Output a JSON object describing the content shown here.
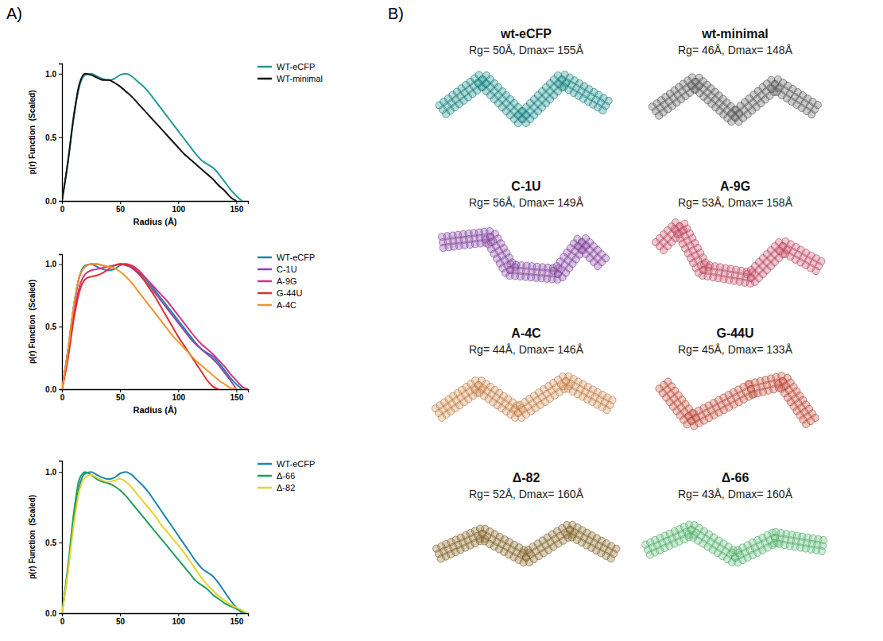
{
  "panel_labels": {
    "A": "A)",
    "B": "B)"
  },
  "chart_data": [
    {
      "type": "line",
      "xlabel": "Radius (Å)",
      "ylabel": "p(r) Function  (Scaled)",
      "x": [
        0,
        5,
        10,
        15,
        20,
        25,
        30,
        35,
        40,
        45,
        50,
        55,
        60,
        65,
        70,
        75,
        80,
        85,
        90,
        95,
        100,
        105,
        110,
        115,
        120,
        125,
        130,
        135,
        140,
        145,
        150,
        155,
        160
      ],
      "xlim": [
        0,
        160
      ],
      "xticks": [
        0,
        50,
        100,
        150
      ],
      "ylim": [
        0,
        1.08
      ],
      "yticks": [
        {
          "value": 0,
          "label": "0.0"
        },
        {
          "value": 0.5,
          "label": "0.5"
        },
        {
          "value": 1,
          "label": "1.0"
        }
      ],
      "legend": "right",
      "series": [
        {
          "name": "WT-eCFP",
          "color": "#1f9a9a",
          "values": [
            0,
            0.3,
            0.65,
            0.9,
            0.99,
            1.0,
            0.98,
            0.96,
            0.95,
            0.96,
            0.99,
            1.0,
            0.98,
            0.94,
            0.9,
            0.85,
            0.79,
            0.73,
            0.67,
            0.61,
            0.55,
            0.49,
            0.43,
            0.37,
            0.32,
            0.29,
            0.26,
            0.21,
            0.15,
            0.09,
            0.04,
            0.0,
            null
          ]
        },
        {
          "name": "WT-minimal",
          "color": "#111111",
          "values": [
            0,
            0.3,
            0.66,
            0.92,
            1.0,
            0.99,
            0.97,
            0.95,
            0.95,
            0.93,
            0.9,
            0.86,
            0.82,
            0.77,
            0.72,
            0.67,
            0.62,
            0.57,
            0.52,
            0.47,
            0.42,
            0.37,
            0.33,
            0.29,
            0.25,
            0.21,
            0.17,
            0.12,
            0.08,
            0.03,
            0.0,
            null,
            null
          ]
        }
      ]
    },
    {
      "type": "line",
      "xlabel": "Radius (Å)",
      "ylabel": "p(r) Function  (Scaled)",
      "x": [
        0,
        5,
        10,
        15,
        20,
        25,
        30,
        35,
        40,
        45,
        50,
        55,
        60,
        65,
        70,
        75,
        80,
        85,
        90,
        95,
        100,
        105,
        110,
        115,
        120,
        125,
        130,
        135,
        140,
        145,
        150,
        155,
        160
      ],
      "xlim": [
        0,
        160
      ],
      "xticks": [
        0,
        50,
        100,
        150
      ],
      "ylim": [
        0,
        1.08
      ],
      "yticks": [
        {
          "value": 0,
          "label": "0.0"
        },
        {
          "value": 0.5,
          "label": "0.5"
        },
        {
          "value": 1,
          "label": "1.0"
        }
      ],
      "legend": "right",
      "series": [
        {
          "name": "WT-eCFP",
          "color": "#1b86a8",
          "values": [
            0,
            0.3,
            0.65,
            0.9,
            0.99,
            1.0,
            0.98,
            0.96,
            0.95,
            0.96,
            0.99,
            1.0,
            0.98,
            0.94,
            0.9,
            0.85,
            0.79,
            0.73,
            0.67,
            0.61,
            0.55,
            0.49,
            0.43,
            0.37,
            0.32,
            0.29,
            0.26,
            0.21,
            0.15,
            0.09,
            0.04,
            0.0,
            null
          ]
        },
        {
          "name": "C-1U",
          "color": "#8e44ad",
          "values": [
            0,
            0.3,
            0.65,
            0.9,
            0.98,
            1.0,
            1.0,
            0.99,
            0.98,
            0.99,
            1.0,
            0.99,
            0.97,
            0.93,
            0.88,
            0.83,
            0.77,
            0.71,
            0.65,
            0.59,
            0.53,
            0.47,
            0.41,
            0.36,
            0.32,
            0.28,
            0.24,
            0.19,
            0.13,
            0.07,
            0.0,
            null,
            null
          ]
        },
        {
          "name": "A-9G",
          "color": "#d63384",
          "values": [
            0,
            0.25,
            0.58,
            0.82,
            0.92,
            0.95,
            0.96,
            0.97,
            0.98,
            0.99,
            1.0,
            1.0,
            0.99,
            0.96,
            0.91,
            0.86,
            0.81,
            0.76,
            0.71,
            0.65,
            0.59,
            0.53,
            0.47,
            0.41,
            0.36,
            0.32,
            0.28,
            0.23,
            0.18,
            0.12,
            0.07,
            0.02,
            0.0
          ]
        },
        {
          "name": "G-44U",
          "color": "#e0302a",
          "values": [
            0,
            0.24,
            0.55,
            0.78,
            0.88,
            0.9,
            0.91,
            0.93,
            0.96,
            0.99,
            1.0,
            1.0,
            0.98,
            0.94,
            0.88,
            0.81,
            0.74,
            0.66,
            0.58,
            0.5,
            0.42,
            0.35,
            0.28,
            0.21,
            0.14,
            0.07,
            0.02,
            0.0,
            null,
            null,
            null,
            null,
            null
          ]
        },
        {
          "name": "A-4C",
          "color": "#f0952b",
          "values": [
            0,
            0.3,
            0.66,
            0.9,
            0.98,
            1.0,
            1.0,
            0.99,
            0.98,
            0.97,
            0.94,
            0.9,
            0.85,
            0.79,
            0.73,
            0.67,
            0.61,
            0.55,
            0.49,
            0.43,
            0.38,
            0.33,
            0.28,
            0.23,
            0.19,
            0.15,
            0.11,
            0.07,
            0.04,
            0.01,
            0.0,
            null,
            null
          ]
        }
      ]
    },
    {
      "type": "line",
      "ylabel": "p(r) Function  (Scaled)",
      "x": [
        0,
        5,
        10,
        15,
        20,
        25,
        30,
        35,
        40,
        45,
        50,
        55,
        60,
        65,
        70,
        75,
        80,
        85,
        90,
        95,
        100,
        105,
        110,
        115,
        120,
        125,
        130,
        135,
        140,
        145,
        150,
        155,
        160
      ],
      "xlim": [
        0,
        160
      ],
      "xticks": [
        0,
        50,
        100,
        150
      ],
      "ylim": [
        0,
        1.08
      ],
      "yticks": [
        {
          "value": 0,
          "label": "0.0"
        },
        {
          "value": 0.5,
          "label": "0.5"
        },
        {
          "value": 1,
          "label": "1.0"
        }
      ],
      "legend": "right",
      "series": [
        {
          "name": "WT-eCFP",
          "color": "#1b86a8",
          "values": [
            0,
            0.3,
            0.65,
            0.9,
            0.99,
            1.0,
            0.98,
            0.96,
            0.95,
            0.96,
            0.99,
            1.0,
            0.98,
            0.94,
            0.9,
            0.85,
            0.79,
            0.73,
            0.67,
            0.61,
            0.55,
            0.49,
            0.43,
            0.37,
            0.32,
            0.29,
            0.26,
            0.21,
            0.15,
            0.09,
            0.04,
            0.0,
            null
          ]
        },
        {
          "name": "Δ-66",
          "color": "#1e9e5a",
          "values": [
            0,
            0.32,
            0.7,
            0.95,
            1.0,
            0.98,
            0.95,
            0.93,
            0.92,
            0.9,
            0.87,
            0.83,
            0.78,
            0.73,
            0.68,
            0.63,
            0.58,
            0.53,
            0.48,
            0.43,
            0.38,
            0.33,
            0.28,
            0.23,
            0.2,
            0.17,
            0.13,
            0.1,
            0.07,
            0.05,
            0.03,
            0.01,
            0.0
          ]
        },
        {
          "name": "Δ-82",
          "color": "#e6d32a",
          "values": [
            0,
            0.28,
            0.62,
            0.87,
            0.96,
            0.98,
            0.96,
            0.94,
            0.93,
            0.94,
            0.95,
            0.93,
            0.89,
            0.84,
            0.79,
            0.74,
            0.69,
            0.63,
            0.58,
            0.53,
            0.48,
            0.43,
            0.37,
            0.31,
            0.25,
            0.2,
            0.16,
            0.12,
            0.09,
            0.06,
            0.04,
            0.02,
            0.0
          ]
        }
      ]
    }
  ],
  "models": [
    {
      "name": "wt-eCFP",
      "caption": "Rg= 50Å, Dmax= 155Å",
      "color": "#2a9d9a"
    },
    {
      "name": "wt-minimal",
      "caption": "Rg= 46Å, Dmax= 148Å",
      "color": "#707070"
    },
    {
      "name": "C-1U",
      "caption": "Rg= 56Å, Dmax= 149Å",
      "color": "#9b59b6"
    },
    {
      "name": "A-9G",
      "caption": "Rg= 53Å, Dmax= 158Å",
      "color": "#d9607a"
    },
    {
      "name": "A-4C",
      "caption": "Rg= 44Å, Dmax= 146Å",
      "color": "#e3a066"
    },
    {
      "name": "G-44U",
      "caption": "Rg= 45Å, Dmax= 133Å",
      "color": "#d9604f"
    },
    {
      "name": "Δ-82",
      "caption": "Rg= 52Å, Dmax= 160Å",
      "color": "#9c7a3c"
    },
    {
      "name": "Δ-66",
      "caption": "Rg= 43Å, Dmax= 160Å",
      "color": "#6fcf8a"
    }
  ]
}
